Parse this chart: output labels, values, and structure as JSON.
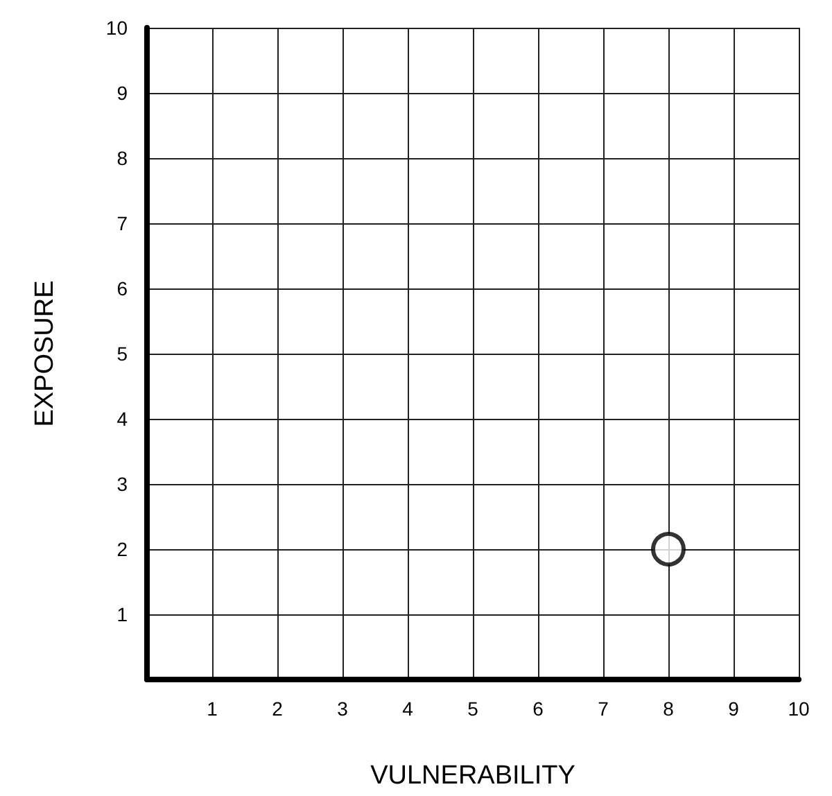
{
  "chart_data": {
    "type": "scatter",
    "xlabel": "VULNERABILITY",
    "ylabel": "EXPOSURE",
    "x": [
      8
    ],
    "values": [
      2
    ],
    "color": "#000000",
    "marker": "circle",
    "xlim": [
      0,
      10
    ],
    "ylim": [
      0,
      10
    ],
    "xticks": [
      1,
      2,
      3,
      4,
      5,
      6,
      7,
      8,
      9,
      10
    ],
    "yticks": [
      1,
      2,
      3,
      4,
      5,
      6,
      7,
      8,
      9,
      10
    ],
    "grid": true
  }
}
